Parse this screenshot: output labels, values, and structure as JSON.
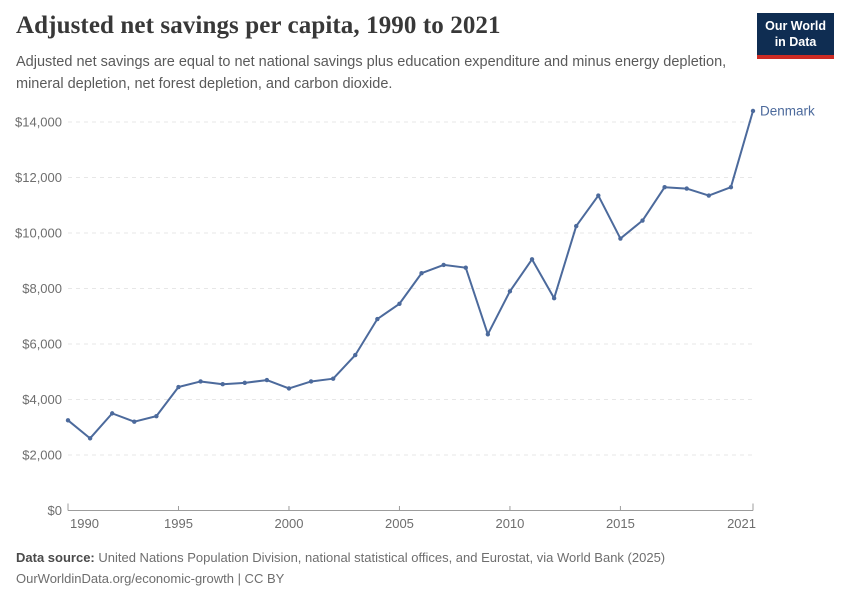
{
  "header": {
    "title": "Adjusted net savings per capita, 1990 to 2021",
    "subtitle": "Adjusted net savings are equal to net national savings plus education expenditure and minus energy depletion, mineral depletion, net forest depletion, and carbon dioxide.",
    "logo": {
      "line1": "Our World",
      "line2": "in Data",
      "background_color": "#0f2d52",
      "stripe_color": "#cd2b24"
    }
  },
  "chart_data": {
    "type": "line",
    "title": "Adjusted net savings per capita, 1990 to 2021",
    "x": [
      1990,
      1991,
      1992,
      1993,
      1994,
      1995,
      1996,
      1997,
      1998,
      1999,
      2000,
      2001,
      2002,
      2003,
      2004,
      2005,
      2006,
      2007,
      2008,
      2009,
      2010,
      2011,
      2012,
      2013,
      2014,
      2015,
      2016,
      2017,
      2018,
      2019,
      2020,
      2021
    ],
    "series": [
      {
        "name": "Denmark",
        "color": "#4c6a9c",
        "values": [
          3250,
          2600,
          3500,
          3200,
          3400,
          4450,
          4650,
          4550,
          4600,
          4700,
          4400,
          4650,
          4750,
          5600,
          6900,
          7450,
          8550,
          8850,
          8750,
          6350,
          7900,
          9050,
          7650,
          10250,
          11350,
          9800,
          10450,
          11650,
          11600,
          11350,
          11650,
          14400
        ]
      }
    ],
    "end_label": "Denmark",
    "xlabel": "",
    "ylabel": "",
    "xlim": [
      1990,
      2021
    ],
    "ylim": [
      0,
      14500
    ],
    "x_ticks": [
      1990,
      1995,
      2000,
      2005,
      2010,
      2015,
      2021
    ],
    "y_ticks": [
      0,
      2000,
      4000,
      6000,
      8000,
      10000,
      12000,
      14000
    ],
    "y_tick_prefix": "$",
    "grid": "horizontal-dashed",
    "gridline_color": "#e7e7e7",
    "axis_color": "#9c9c9c",
    "tick_label_color": "#6e6e6e",
    "marker": "circle",
    "legend_position": "end-of-line"
  },
  "footer": {
    "source_label": "Data source:",
    "source_text": " United Nations Population Division, national statistical offices, and Eurostat, via World Bank (2025)",
    "attribution": "OurWorldinData.org/economic-growth | CC BY"
  }
}
